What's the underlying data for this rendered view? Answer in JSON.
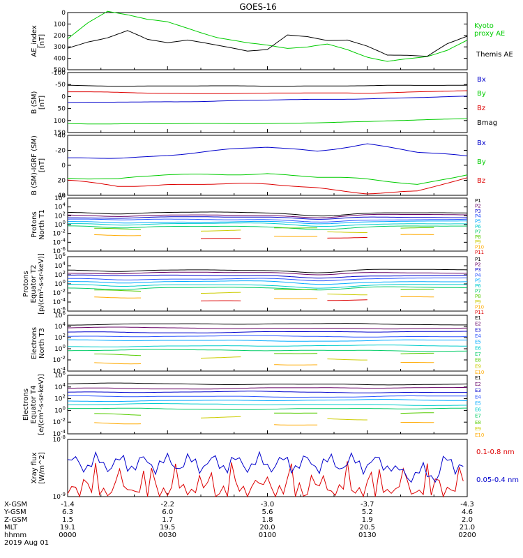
{
  "title": "GOES-16",
  "colors": {
    "black": "#000000",
    "green": "#00cc00",
    "blue": "#0000cc",
    "red": "#dd0000",
    "p_colors": [
      "#000000",
      "#660066",
      "#0000cc",
      "#2a55ff",
      "#00aaff",
      "#00cccc",
      "#00cc66",
      "#55cc00",
      "#cccc00",
      "#ffaa00",
      "#dd0000"
    ]
  },
  "chart_data": [
    {
      "type": "line",
      "panel": "ae",
      "ylabel": [
        "AE_index",
        "[nT]"
      ],
      "ylim": [
        0,
        500
      ],
      "yticks": [
        "0",
        "100",
        "200",
        "300",
        "400",
        "500"
      ],
      "x": [
        0,
        60,
        120
      ],
      "series": [
        {
          "name": "Kyoto proxy AE",
          "label_lines": [
            "Kyoto",
            "proxy AE"
          ],
          "color": "green",
          "x": [
            0,
            6,
            12,
            18,
            24,
            30,
            36,
            45,
            54,
            60,
            66,
            72,
            78,
            84,
            90,
            96,
            102,
            108,
            114,
            120
          ],
          "values": [
            270,
            400,
            500,
            470,
            430,
            410,
            360,
            280,
            230,
            210,
            180,
            190,
            220,
            180,
            120,
            85,
            110,
            130,
            180,
            260
          ]
        },
        {
          "name": "Themis AE",
          "label_lines": [
            "Themis AE"
          ],
          "color": "black",
          "x": [
            0,
            6,
            12,
            18,
            24,
            30,
            36,
            45,
            54,
            60,
            66,
            72,
            78,
            84,
            90,
            96,
            102,
            108,
            114,
            120
          ],
          "values": [
            180,
            240,
            280,
            340,
            260,
            230,
            250,
            200,
            160,
            180,
            310,
            300,
            270,
            270,
            210,
            130,
            130,
            120,
            230,
            300
          ]
        }
      ]
    },
    {
      "type": "line",
      "panel": "bsm",
      "ylabel": [
        "B (SM)",
        "[nT]"
      ],
      "ylim": [
        -100,
        150
      ],
      "yticks": [
        "-100",
        "-50",
        "0",
        "50",
        "100",
        "150"
      ],
      "series": [
        {
          "name": "Bx",
          "color": "blue",
          "x": [
            0,
            30,
            60,
            90,
            120
          ],
          "values": [
            22,
            30,
            36,
            42,
            48
          ]
        },
        {
          "name": "By",
          "color": "green",
          "x": [
            0,
            30,
            60,
            90,
            120
          ],
          "values": [
            -62,
            -63,
            -60,
            -57,
            -42
          ]
        },
        {
          "name": "Bz",
          "color": "red",
          "x": [
            0,
            30,
            60,
            90,
            120
          ],
          "values": [
            70,
            66,
            63,
            64,
            72
          ]
        },
        {
          "name": "Bmag",
          "color": "black",
          "x": [
            0,
            30,
            60,
            90,
            120
          ],
          "values": [
            99,
            94,
            94,
            92,
            98
          ]
        }
      ]
    },
    {
      "type": "line",
      "panel": "bigrf",
      "ylabel": [
        "B (SM)-IGRF (SM)",
        "[nT]"
      ],
      "ylim": [
        -40,
        40
      ],
      "yticks": [
        "-40",
        "-20",
        "0",
        "20",
        "40"
      ],
      "series": [
        {
          "name": "Bx",
          "color": "blue",
          "x": [
            0,
            15,
            30,
            60,
            75,
            90,
            105,
            120
          ],
          "values": [
            10,
            12,
            15,
            22,
            18,
            28,
            16,
            12
          ]
        },
        {
          "name": "By",
          "color": "green",
          "x": [
            0,
            15,
            30,
            60,
            75,
            90,
            105,
            120
          ],
          "values": [
            -14,
            -18,
            -14,
            -12,
            -18,
            -20,
            -24,
            -10
          ]
        },
        {
          "name": "Bz",
          "color": "red",
          "x": [
            0,
            15,
            30,
            60,
            75,
            90,
            105,
            120
          ],
          "values": [
            -20,
            -28,
            -26,
            -28,
            -30,
            -36,
            -34,
            -16
          ]
        }
      ]
    },
    {
      "type": "line",
      "panel": "pnorth",
      "yscale": "log",
      "ylabel": [
        "Protons",
        "North T1"
      ],
      "ylim": [
        1e-06,
        1000000.0
      ],
      "yticks": [
        "10^6",
        "10^4",
        "10^2",
        "10^0",
        "10^-2",
        "10^-4",
        "10^-6"
      ],
      "legend": [
        "P1",
        "P2",
        "P3",
        "P4",
        "P5",
        "P6",
        "P7",
        "P8",
        "P9",
        "P10",
        "P11"
      ],
      "channel_levels_log": [
        2.7,
        2.2,
        1.7,
        1.2,
        0.7,
        0.2,
        -0.4,
        -0.9,
        -1.6,
        -2.4,
        -3.2
      ]
    },
    {
      "type": "line",
      "panel": "peq",
      "yscale": "log",
      "ylabel": [
        "Protons",
        "Equator T2",
        "[p/(cm²-s-sr-keV)]"
      ],
      "ylim": [
        1e-06,
        1000000.0
      ],
      "yticks": [
        "10^6",
        "10^4",
        "10^2",
        "10^0",
        "10^-2",
        "10^-4",
        "10^-6"
      ],
      "legend": [
        "P1",
        "P2",
        "P3",
        "P4",
        "P5",
        "P6",
        "P7",
        "P8",
        "P9",
        "P10",
        "P11"
      ],
      "channel_levels_log": [
        3.1,
        2.5,
        1.9,
        1.2,
        0.5,
        -0.2,
        -0.8,
        -1.4,
        -2.2,
        -3.0,
        -3.8
      ]
    },
    {
      "type": "line",
      "panel": "enorth",
      "yscale": "log",
      "ylabel": [
        "Electrons",
        "North T3"
      ],
      "ylim": [
        0.0001,
        1000000.0
      ],
      "yticks": [
        "10^6",
        "10^4",
        "10^2",
        "10^0",
        "10^-2",
        "10^-4"
      ],
      "legend": [
        "E1",
        "E2",
        "E3",
        "E4",
        "E5",
        "E6",
        "E7",
        "E8",
        "E9",
        "E10"
      ],
      "channel_levels_log": [
        4.4,
        3.7,
        3.0,
        2.2,
        1.5,
        0.5,
        -0.3,
        -1.0,
        -1.8,
        -2.6
      ]
    },
    {
      "type": "line",
      "panel": "eeq",
      "yscale": "log",
      "ylabel": [
        "Electrons",
        "Equator T4",
        "[e/(cm²-s-sr-keV)]"
      ],
      "ylim": [
        0.0001,
        1000000.0
      ],
      "yticks": [
        "10^6",
        "10^4",
        "10^2",
        "10^0",
        "10^-2",
        "10^-4"
      ],
      "legend": [
        "E1",
        "E2",
        "E3",
        "E4",
        "E5",
        "E6",
        "E7",
        "E8",
        "E9",
        "E10"
      ],
      "channel_levels_log": [
        4.5,
        3.8,
        3.1,
        2.4,
        1.7,
        1.0,
        0.3,
        -0.6,
        -1.4,
        -2.2
      ]
    },
    {
      "type": "line",
      "panel": "xray",
      "yscale": "log",
      "ylabel": [
        "Xray flux",
        "[W/m^2]"
      ],
      "ylim": [
        1e-09,
        1e-08
      ],
      "yticks": [
        "10^-8",
        "10^-9"
      ],
      "series": [
        {
          "name": "0.1-0.8 nm",
          "color": "red"
        },
        {
          "name": "0.05-0.4 nm",
          "color": "blue"
        }
      ]
    }
  ],
  "xaxis": {
    "row_labels": [
      "X-GSM",
      "Y-GSM",
      "Z-GSM",
      "MLT",
      "hhmm",
      "2019 Aug 01"
    ],
    "columns": [
      {
        "X-GSM": "-1.4",
        "Y-GSM": "6.3",
        "Z-GSM": "1.5",
        "MLT": "19.1",
        "hhmm": "0000"
      },
      {
        "X-GSM": "-2.2",
        "Y-GSM": "6.0",
        "Z-GSM": "1.7",
        "MLT": "19.5",
        "hhmm": "0030"
      },
      {
        "X-GSM": "-3.0",
        "Y-GSM": "5.6",
        "Z-GSM": "1.8",
        "MLT": "20.0",
        "hhmm": "0100"
      },
      {
        "X-GSM": "-3.7",
        "Y-GSM": "5.2",
        "Z-GSM": "1.9",
        "MLT": "20.5",
        "hhmm": "0130"
      },
      {
        "X-GSM": "-4.3",
        "Y-GSM": "4.6",
        "Z-GSM": "2.0",
        "MLT": "21.0",
        "hhmm": "0200"
      }
    ]
  }
}
